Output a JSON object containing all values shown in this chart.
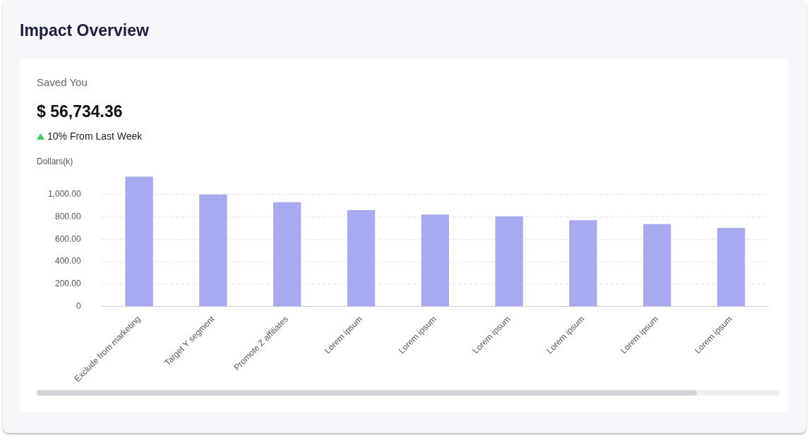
{
  "chart_data": {
    "type": "bar",
    "title": "Impact Overview",
    "subtitle": "Saved You",
    "annotations": [
      "$ 56,734.36",
      "10% From Last Week"
    ],
    "ylabel": "Dollars(k)",
    "categories": [
      "Exclude from marketing",
      "Target Y segment",
      "Promote Z affiliates",
      "Lorem ipsum",
      "Lorem ipsum",
      "Lorem ipsum",
      "Lorem ipsum",
      "Lorem ipsum",
      "Lorem ipsum"
    ],
    "values": [
      1160,
      1000,
      930,
      860,
      820,
      805,
      770,
      735,
      700
    ],
    "color": "#a7aaee",
    "ylim": [
      0,
      1160
    ],
    "yticks": [
      0,
      {
        "value": 200,
        "label": "200.00"
      },
      {
        "value": 400,
        "label": "400.00"
      },
      {
        "value": 600,
        "label": "600.00"
      },
      {
        "value": 800,
        "label": "800.00"
      },
      {
        "value": 1000,
        "label": "1,000.00"
      }
    ],
    "grid": "y"
  }
}
